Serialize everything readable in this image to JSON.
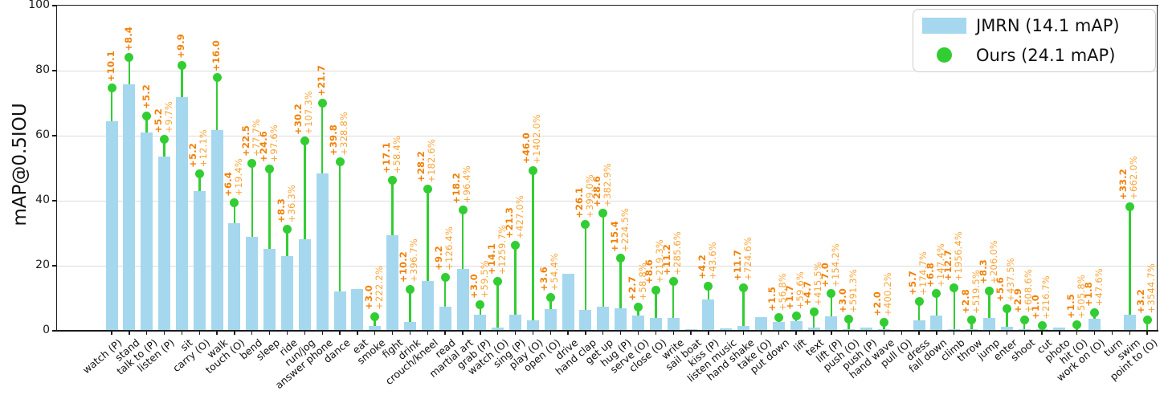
{
  "chart_data": {
    "type": "bar",
    "title": "",
    "ylabel": "mAP@0.5IOU",
    "xlabel": "",
    "ylim": [
      0,
      100
    ],
    "yticks": [
      0,
      20,
      40,
      60,
      80,
      100
    ],
    "grid": true,
    "legend_position": "upper right",
    "legend": [
      {
        "label": "JMRN (14.1 mAP)",
        "marker": "bar",
        "color": "#A5D8EE"
      },
      {
        "label": "Ours (24.1 mAP)",
        "marker": "dot",
        "color": "#32CD32"
      }
    ],
    "colors": {
      "bar": "#A5D8EE",
      "stem": "#33CD33",
      "dot": "#32CD32",
      "delta_text": "#F28109",
      "pct_text": "#F9A233",
      "grid": "#dcdcdc"
    },
    "categories": [
      "watch (P)",
      "stand",
      "talk to (P)",
      "listen (P)",
      "sit",
      "carry (O)",
      "walk",
      "touch (O)",
      "bend",
      "sleep",
      "ride",
      "run/jog",
      "answer phone",
      "dance",
      "eat",
      "smoke",
      "fight",
      "drink",
      "crouch/kneel",
      "read",
      "martial art",
      "grab (P)",
      "watch (O)",
      "sing (P)",
      "play (O)",
      "open (O)",
      "drive",
      "hand clap",
      "get up",
      "hug (P)",
      "serve (O)",
      "close (O)",
      "write",
      "sail boat",
      "kiss (P)",
      "listen music",
      "hand shake",
      "take (O)",
      "put down",
      "lift",
      "text",
      "lift (P)",
      "push (O)",
      "push (P)",
      "hand wave",
      "pull (O)",
      "dress",
      "fall down",
      "climb",
      "throw",
      "jump",
      "enter",
      "shoot",
      "cut",
      "photo",
      "hit (O)",
      "work on (O)",
      "turn",
      "swim",
      "point to (O)"
    ],
    "series": [
      {
        "name": "JMRN (14.1 mAP)",
        "type": "bar",
        "values": [
          64.5,
          75.7,
          60.9,
          53.6,
          71.8,
          43.0,
          61.8,
          33.0,
          29.0,
          25.2,
          22.9,
          28.1,
          48.3,
          12.1,
          12.8,
          1.4,
          29.3,
          2.6,
          15.4,
          7.3,
          18.9,
          5.0,
          1.1,
          5.0,
          3.3,
          6.6,
          17.5,
          6.5,
          7.5,
          6.9,
          4.6,
          3.9,
          3.9,
          0.4,
          9.6,
          0.8,
          1.6,
          4.3,
          2.6,
          2.9,
          1.1,
          4.5,
          0.5,
          1.1,
          0.5,
          0.3,
          3.3,
          4.6,
          0.6,
          0.5,
          4.0,
          1.3,
          0.5,
          0.5,
          0.9,
          0.3,
          3.8,
          0.3,
          5.0,
          0.1
        ]
      },
      {
        "name": "Ours (24.1 mAP)",
        "type": "point",
        "values": [
          74.6,
          84.1,
          66.1,
          58.8,
          81.7,
          48.2,
          77.8,
          39.4,
          51.5,
          49.8,
          31.2,
          58.3,
          70.0,
          51.9,
          null,
          4.4,
          46.4,
          12.8,
          43.6,
          16.5,
          37.1,
          8.0,
          15.2,
          26.3,
          49.3,
          10.2,
          null,
          32.6,
          36.1,
          22.3,
          7.3,
          12.5,
          15.1,
          null,
          13.8,
          null,
          13.3,
          null,
          4.1,
          4.6,
          5.8,
          11.5,
          3.5,
          null,
          2.5,
          null,
          9.0,
          11.4,
          13.3,
          3.3,
          12.3,
          6.9,
          3.4,
          1.5,
          null,
          1.8,
          5.6,
          null,
          38.2,
          3.3
        ]
      }
    ],
    "annotations": {
      "delta": [
        "+10.1",
        "+8.4",
        "+5.2",
        "+5.2",
        "+9.9",
        "+5.2",
        "+16.0",
        "+6.4",
        "+22.5",
        "+24.6",
        "+8.3",
        "+30.2",
        "+21.7",
        "+39.8",
        null,
        "+3.0",
        "+17.1",
        "+10.2",
        "+28.2",
        "+9.2",
        "+18.2",
        "+3.0",
        "+14.1",
        "+21.3",
        "+46.0",
        "+3.6",
        null,
        "+26.1",
        "+28.6",
        "+15.4",
        "+2.7",
        "+8.6",
        "+11.2",
        null,
        "+4.2",
        null,
        "+11.7",
        null,
        "+1.5",
        "+1.7",
        "+4.7",
        "+7.0",
        "+3.0",
        null,
        "+2.0",
        null,
        "+5.7",
        "+6.8",
        "+12.7",
        "+2.8",
        "+8.3",
        "+5.6",
        "+2.9",
        "+1.0",
        null,
        "+1.5",
        "+1.8",
        null,
        "+33.2",
        "+3.2"
      ],
      "pct": [
        null,
        null,
        null,
        "+9.7%",
        null,
        "+12.1%",
        null,
        "+19.4%",
        "+77.7%",
        "+97.6%",
        "+36.3%",
        "+107.3%",
        null,
        "+328.8%",
        null,
        "+222.2%",
        "+58.4%",
        "+396.7%",
        "+182.6%",
        "+126.4%",
        "+96.4%",
        "+59.5%",
        "+1259.7%",
        "+427.0%",
        "+1402.0%",
        "+54.4%",
        null,
        "+399.0%",
        "+382.9%",
        "+224.5%",
        "+58.8%",
        "+219.3%",
        "+285.6%",
        null,
        "+43.6%",
        null,
        "+724.6%",
        null,
        "+56.8%",
        "+59.6%",
        "+415.5%",
        "+154.2%",
        "+591.3%",
        null,
        "+400.2%",
        null,
        "+174.7%",
        "+147.4%",
        "+1956.4%",
        "+519.5%",
        "+206.0%",
        "+437.5%",
        "+608.6%",
        "+216.7%",
        null,
        "+505.8%",
        "+47.6%",
        null,
        "+662.0%",
        "+3544.7%"
      ]
    }
  }
}
